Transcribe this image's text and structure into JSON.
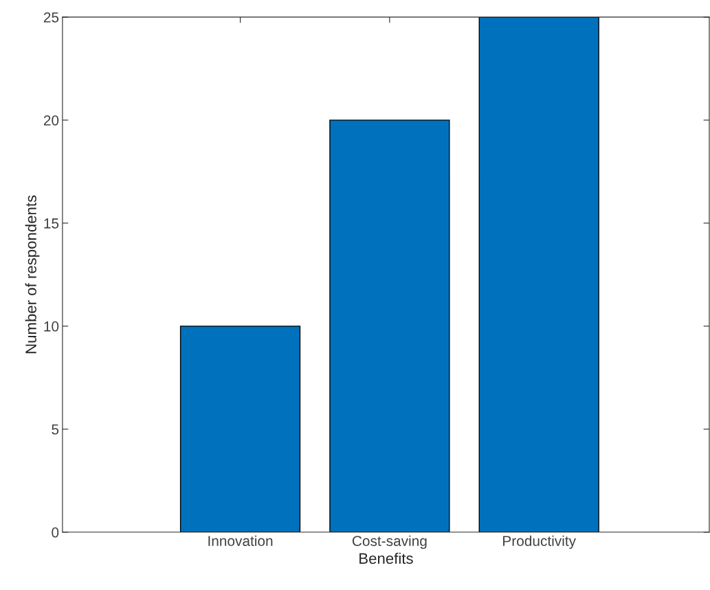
{
  "chart_data": {
    "type": "bar",
    "xlabel": "Benefits",
    "ylabel": "Number of respondents",
    "categories": [
      "Innovation",
      "Cost-saving",
      "Productivity"
    ],
    "values": [
      10,
      20,
      25
    ],
    "color": "#0072bd",
    "ylim": [
      0,
      25
    ],
    "yticks": [
      0,
      5,
      10,
      15,
      20,
      25
    ],
    "grid": false,
    "legend": false
  }
}
